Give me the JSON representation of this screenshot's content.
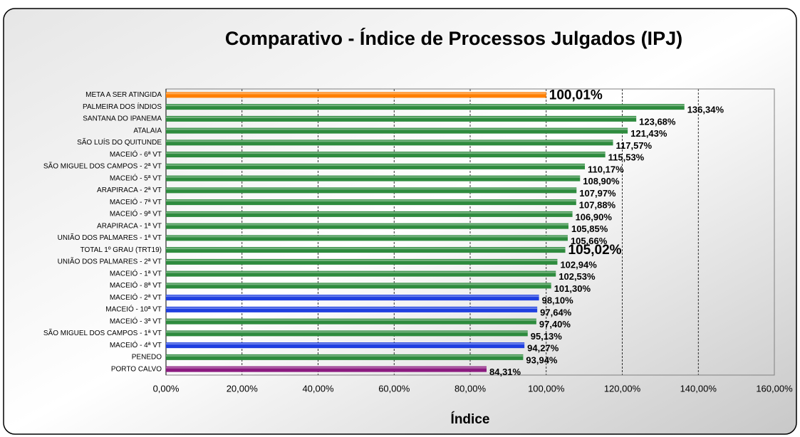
{
  "chart_data": {
    "type": "bar",
    "orientation": "horizontal",
    "title": "Comparativo - Índice de Processos Julgados (IPJ)",
    "x_label": "Índice",
    "categories": [
      "META A SER ATINGIDA",
      "PALMEIRA DOS ÍNDIOS",
      "SANTANA DO IPANEMA",
      "ATALAIA",
      "SÃO LUÍS DO QUITUNDE",
      "MACEIÓ - 6ª VT",
      "SÃO MIGUEL DOS CAMPOS - 2ª VT",
      "MACEIÓ - 5ª VT",
      "ARAPIRACA - 2ª VT",
      "MACEIÓ - 7ª VT",
      "MACEIÓ - 9ª VT",
      "ARAPIRACA - 1ª VT",
      "UNIÃO DOS PALMARES - 1ª VT",
      "TOTAL 1º GRAU (TRT19)",
      "UNIÃO DOS PALMARES - 2ª VT",
      "MACEIÓ - 1ª VT",
      "MACEIÓ - 8ª VT",
      "MACEIÓ - 2ª VT",
      "MACEIÓ - 10ª VT",
      "MACEIÓ - 3ª VT",
      "SÃO MIGUEL DOS CAMPOS - 1ª VT",
      "MACEIÓ - 4ª VT",
      "PENEDO",
      "PORTO CALVO"
    ],
    "values": [
      100.01,
      136.34,
      123.68,
      121.43,
      117.57,
      115.53,
      110.17,
      108.9,
      107.97,
      107.88,
      106.9,
      105.85,
      105.66,
      105.02,
      102.94,
      102.53,
      101.3,
      98.1,
      97.64,
      97.4,
      95.13,
      94.27,
      93.94,
      84.31
    ],
    "value_labels": [
      "100,01%",
      "136,34%",
      "123,68%",
      "121,43%",
      "117,57%",
      "115,53%",
      "110,17%",
      "108,90%",
      "107,97%",
      "107,88%",
      "106,90%",
      "105,85%",
      "105,66%",
      "105,02%",
      "102,94%",
      "102,53%",
      "101,30%",
      "98,10%",
      "97,64%",
      "97,40%",
      "95,13%",
      "94,27%",
      "93,94%",
      "84,31%"
    ],
    "colors": [
      "#ff7f00",
      "#2e8b3e",
      "#2e8b3e",
      "#2e8b3e",
      "#2e8b3e",
      "#2e8b3e",
      "#2e8b3e",
      "#2e8b3e",
      "#2e8b3e",
      "#2e8b3e",
      "#2e8b3e",
      "#2e8b3e",
      "#2e8b3e",
      "#2e8b3e",
      "#2e8b3e",
      "#2e8b3e",
      "#2e8b3e",
      "#1f3fe0",
      "#1f3fe0",
      "#2e8b3e",
      "#2e8b3e",
      "#1f3fe0",
      "#2e8b3e",
      "#8b1a7f"
    ],
    "xlim": [
      0,
      160
    ],
    "xticks": [
      {
        "value": 0,
        "label": "0,00%"
      },
      {
        "value": 20,
        "label": "20,00%"
      },
      {
        "value": 40,
        "label": "40,00%"
      },
      {
        "value": 60,
        "label": "60,00%"
      },
      {
        "value": 80,
        "label": "80,00%"
      },
      {
        "value": 100,
        "label": "100,00%"
      },
      {
        "value": 120,
        "label": "120,00%"
      },
      {
        "value": 140,
        "label": "140,00%"
      },
      {
        "value": 160,
        "label": "160,00%"
      }
    ],
    "grid": true
  }
}
